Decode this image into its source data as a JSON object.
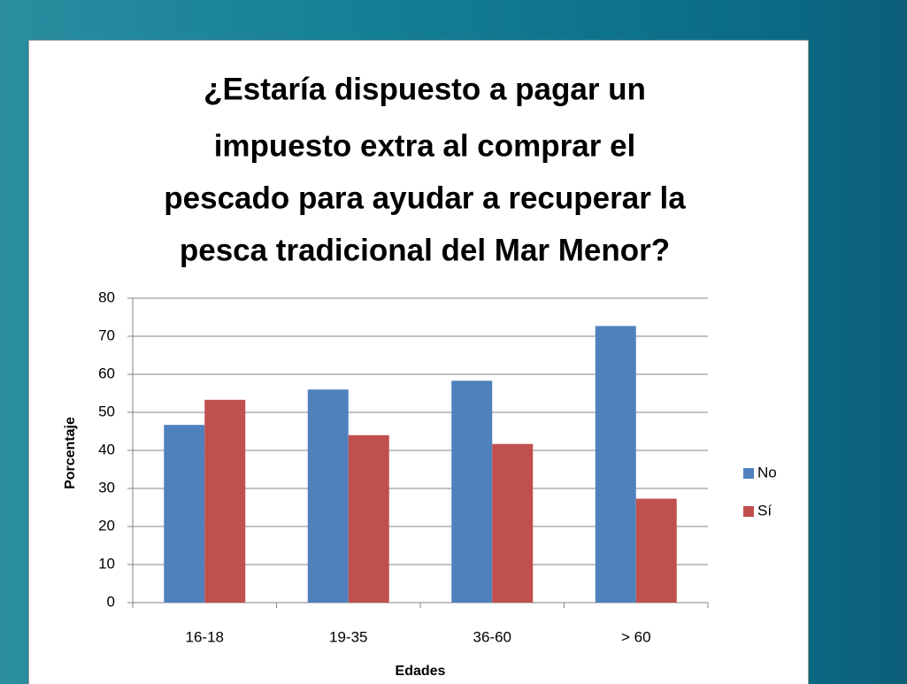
{
  "chart_data": {
    "type": "bar",
    "title": [
      "¿Estaría dispuesto a pagar un",
      "impuesto extra al comprar el",
      "pescado para ayudar a recuperar la",
      "pesca tradicional del Mar Menor?"
    ],
    "categories": [
      "16-18",
      "19-35",
      "36-60",
      "> 60"
    ],
    "series": [
      {
        "name": "No",
        "color": "#4f81bd",
        "values": [
          46.7,
          56,
          58.3,
          72.7
        ]
      },
      {
        "name": "Sí",
        "color": "#c0504d",
        "values": [
          53.3,
          44,
          41.7,
          27.3
        ]
      }
    ],
    "ylim": [
      0,
      80
    ],
    "yticks": [
      0,
      10,
      20,
      30,
      40,
      50,
      60,
      70,
      80
    ],
    "xlabel": "Edades",
    "ylabel": "Porcentaje",
    "grid": true,
    "legend": "right"
  }
}
